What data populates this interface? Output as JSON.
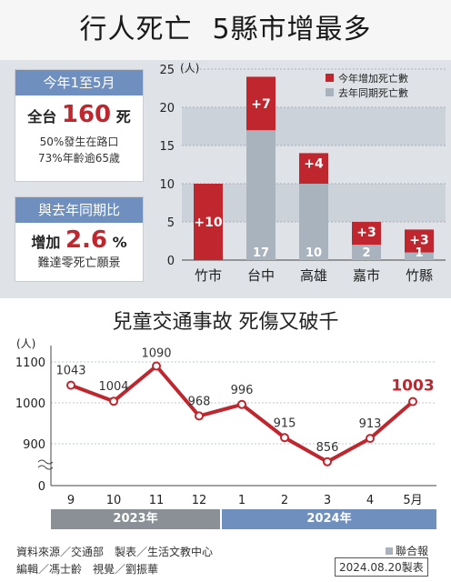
{
  "title_left": "行人死亡",
  "title_right": "5縣市增最多",
  "stats": {
    "header1": "今年1至5月",
    "total_prefix": "全台",
    "total_number": "160",
    "total_suffix": "死",
    "line1_num": "50%",
    "line1_text": "發生在路口",
    "line2_num": "73%",
    "line2_text": "年齡逾65歲",
    "header2": "與去年同期比",
    "inc_prefix": "增加",
    "inc_number": "2.6",
    "inc_suffix": "%",
    "goal": "難達零死亡願景"
  },
  "chart2_title": "兒童交通事故 死傷又破千",
  "years": [
    "2023年",
    "2024年"
  ],
  "footer": {
    "line1": "資料來源／交通部　製表／生活文教中心",
    "line2": "編輯／馮士齡　視覺／劉振華",
    "brand": "聯合報",
    "date": "2024.08.20製表"
  },
  "colors": {
    "increase": "#c0262e",
    "last_year": "#a9b3bd",
    "line": "#c0262e",
    "panel_header": "#6f8fbf",
    "year_2023": "#8a9096",
    "year_2024": "#6f8fbf"
  },
  "chart_data": [
    {
      "type": "bar",
      "stacked": true,
      "categories": [
        "竹市",
        "台中",
        "高雄",
        "嘉市",
        "竹縣"
      ],
      "series": [
        {
          "name": "去年同期死亡數",
          "values": [
            0,
            17,
            10,
            2,
            1
          ]
        },
        {
          "name": "今年增加死亡數",
          "values": [
            10,
            7,
            4,
            3,
            3
          ]
        }
      ],
      "increase_labels": [
        "+10",
        "+7",
        "+4",
        "+3",
        "+3"
      ],
      "base_labels": [
        "",
        "17",
        "10",
        "2",
        "1"
      ],
      "ylabel": "(人)",
      "ylim": [
        0,
        25
      ],
      "yticks": [
        0,
        5,
        10,
        15,
        20,
        25
      ],
      "legend": "top-right"
    },
    {
      "type": "line",
      "categories": [
        "9",
        "10",
        "11",
        "12",
        "1",
        "2",
        "3",
        "4",
        "5月"
      ],
      "values": [
        1043,
        1004,
        1090,
        968,
        996,
        915,
        856,
        913,
        1003
      ],
      "ylabel": "(人)",
      "yticks": [
        "0",
        "900",
        "1000",
        "1100"
      ],
      "axis_break": true
    }
  ]
}
